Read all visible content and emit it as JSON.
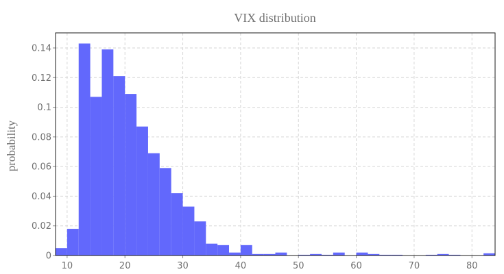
{
  "chart_data": {
    "type": "bar",
    "title": "VIX distribution",
    "xlabel": "",
    "ylabel": "probability",
    "bin_width": 2,
    "xlim": [
      8,
      84
    ],
    "ylim": [
      0,
      0.15
    ],
    "xticks": [
      10,
      20,
      30,
      40,
      50,
      60,
      70,
      80
    ],
    "yticks": [
      0,
      0.02,
      0.04,
      0.06,
      0.08,
      0.1,
      0.12,
      0.14
    ],
    "ytick_labels": [
      "0",
      "0.02",
      "0.04",
      "0.06",
      "0.08",
      "0.1",
      "0.12",
      "0.14"
    ],
    "grid": true,
    "bar_color": "#6268fc",
    "bins": [
      {
        "x0": 8,
        "x1": 10,
        "value": 0.005
      },
      {
        "x0": 10,
        "x1": 12,
        "value": 0.018
      },
      {
        "x0": 12,
        "x1": 14,
        "value": 0.143
      },
      {
        "x0": 14,
        "x1": 16,
        "value": 0.107
      },
      {
        "x0": 16,
        "x1": 18,
        "value": 0.139
      },
      {
        "x0": 18,
        "x1": 20,
        "value": 0.121
      },
      {
        "x0": 20,
        "x1": 22,
        "value": 0.109
      },
      {
        "x0": 22,
        "x1": 24,
        "value": 0.087
      },
      {
        "x0": 24,
        "x1": 26,
        "value": 0.069
      },
      {
        "x0": 26,
        "x1": 28,
        "value": 0.059
      },
      {
        "x0": 28,
        "x1": 30,
        "value": 0.042
      },
      {
        "x0": 30,
        "x1": 32,
        "value": 0.033
      },
      {
        "x0": 32,
        "x1": 34,
        "value": 0.023
      },
      {
        "x0": 34,
        "x1": 36,
        "value": 0.008
      },
      {
        "x0": 36,
        "x1": 38,
        "value": 0.007
      },
      {
        "x0": 38,
        "x1": 40,
        "value": 0.002
      },
      {
        "x0": 40,
        "x1": 42,
        "value": 0.007
      },
      {
        "x0": 42,
        "x1": 44,
        "value": 0.001
      },
      {
        "x0": 44,
        "x1": 46,
        "value": 0.001
      },
      {
        "x0": 46,
        "x1": 48,
        "value": 0.002
      },
      {
        "x0": 48,
        "x1": 50,
        "value": 0.0
      },
      {
        "x0": 50,
        "x1": 52,
        "value": 0.0005
      },
      {
        "x0": 52,
        "x1": 54,
        "value": 0.001
      },
      {
        "x0": 54,
        "x1": 56,
        "value": 0.0005
      },
      {
        "x0": 56,
        "x1": 58,
        "value": 0.002
      },
      {
        "x0": 58,
        "x1": 60,
        "value": 0.0
      },
      {
        "x0": 60,
        "x1": 62,
        "value": 0.002
      },
      {
        "x0": 62,
        "x1": 64,
        "value": 0.001
      },
      {
        "x0": 64,
        "x1": 66,
        "value": 0.0005
      },
      {
        "x0": 66,
        "x1": 68,
        "value": 0.0005
      },
      {
        "x0": 68,
        "x1": 70,
        "value": 0.0
      },
      {
        "x0": 70,
        "x1": 72,
        "value": 0.0
      },
      {
        "x0": 72,
        "x1": 74,
        "value": 0.0005
      },
      {
        "x0": 74,
        "x1": 76,
        "value": 0.001
      },
      {
        "x0": 76,
        "x1": 78,
        "value": 0.0005
      },
      {
        "x0": 78,
        "x1": 80,
        "value": 0.0
      },
      {
        "x0": 80,
        "x1": 82,
        "value": 0.0
      },
      {
        "x0": 82,
        "x1": 84,
        "value": 0.0015
      }
    ]
  }
}
